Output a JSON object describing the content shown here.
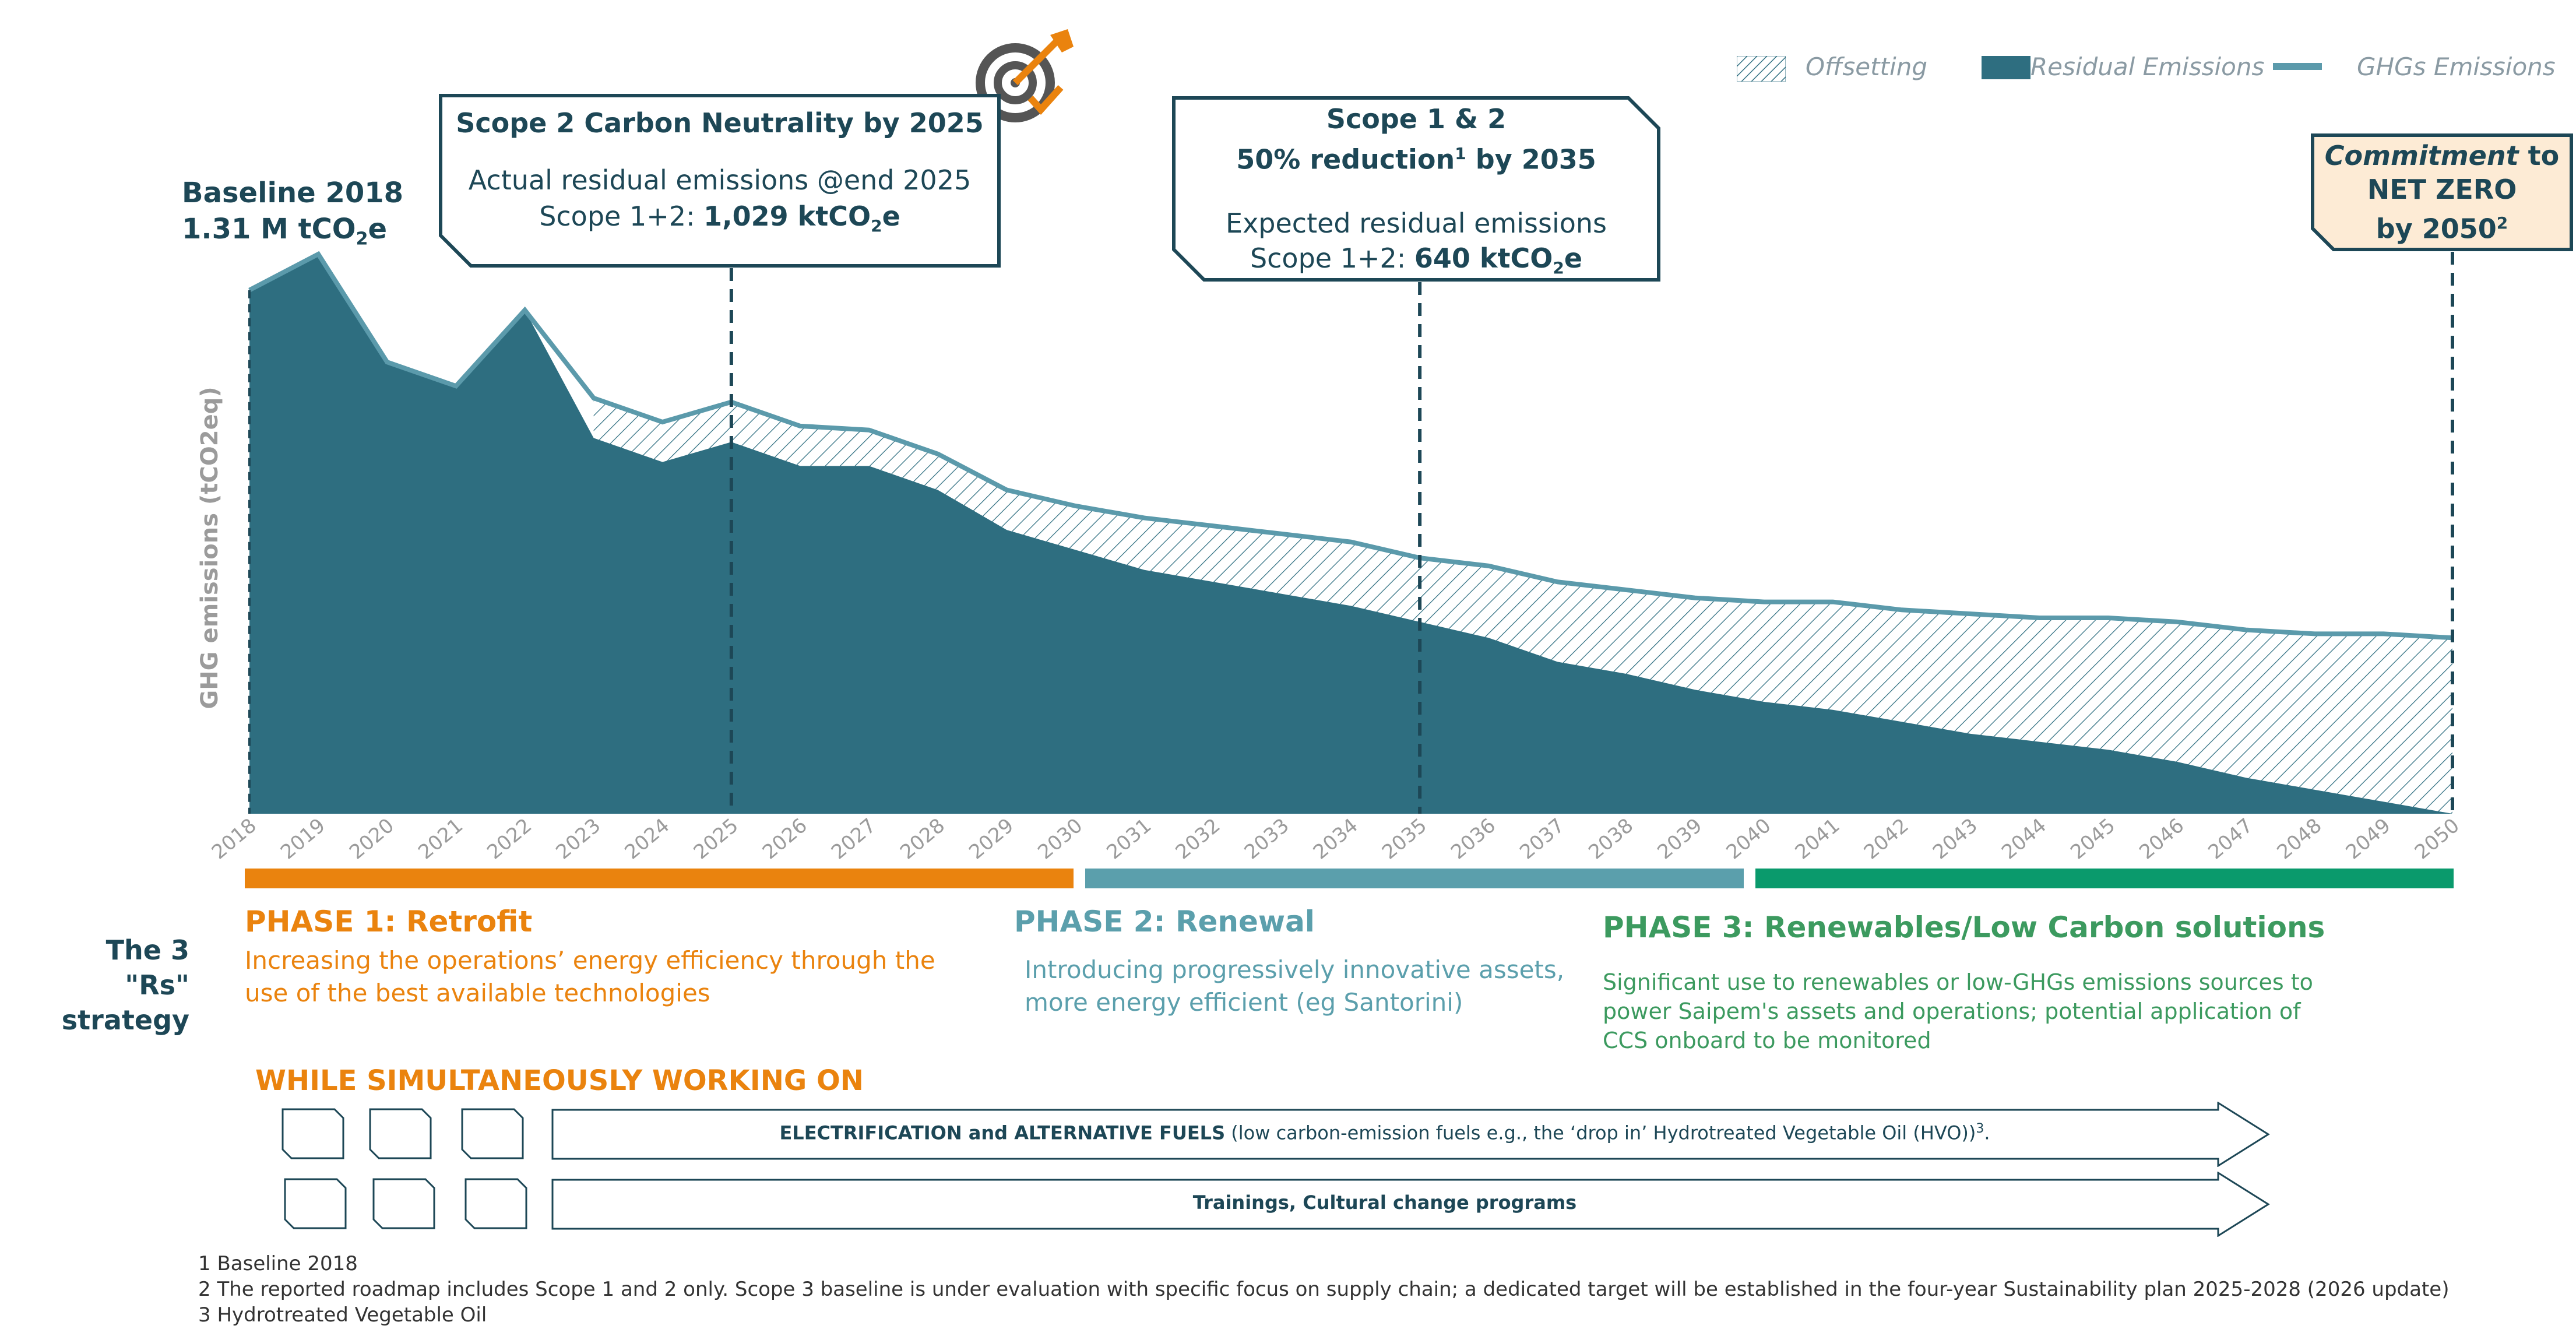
{
  "legend": {
    "offsetting": "Offsetting",
    "residual": "Residual Emissions",
    "ghgs": "GHGs Emissions"
  },
  "baseline": {
    "line1": "Baseline 2018",
    "line2_prefix": "1.31 M tCO",
    "line2_sub": "2",
    "line2_suffix": "e"
  },
  "callout_2025": {
    "title": "Scope 2 Carbon Neutrality by 2025",
    "line1": "Actual residual emissions @end 2025",
    "line2_prefix": "Scope 1+2: ",
    "line2_value": "1,029  ktCO",
    "line2_sub": "2",
    "line2_suffix": "e"
  },
  "callout_2035": {
    "title1": "Scope 1 & 2",
    "title2_prefix": "50% reduction",
    "title2_sup": "1",
    "title2_suffix": " by 2035",
    "line1": "Expected residual emissions",
    "line2_prefix": "Scope 1+2: ",
    "line2_value": "640 ktCO",
    "line2_sub": "2",
    "line2_suffix": "e"
  },
  "callout_2050": {
    "line1_bold": "Commitment",
    "line1_rest": " to",
    "line2": "NET ZERO",
    "line3_prefix": "by 2050",
    "line3_sup": "2"
  },
  "colors": {
    "residual": "#2e6e80",
    "ghg_line": "#5b9aab",
    "hatch": "#2e6e80",
    "phase1": "#ea830e",
    "phase2": "#5b9fac",
    "phase3": "#0a9a6c",
    "navy": "#1d4756"
  },
  "chart_data": {
    "type": "area",
    "ylabel": "GHG emissions (tCO2eq)",
    "x": [
      2018,
      2019,
      2020,
      2021,
      2022,
      2023,
      2024,
      2025,
      2026,
      2027,
      2028,
      2029,
      2030,
      2031,
      2032,
      2033,
      2034,
      2035,
      2036,
      2037,
      2038,
      2039,
      2040,
      2041,
      2042,
      2043,
      2044,
      2045,
      2046,
      2047,
      2048,
      2049,
      2050
    ],
    "ylim": [
      0,
      1.4
    ],
    "series": [
      {
        "name": "GHGs Emissions",
        "values": [
          1.31,
          1.4,
          1.13,
          1.07,
          1.26,
          1.04,
          0.98,
          1.03,
          0.97,
          0.96,
          0.9,
          0.81,
          0.77,
          0.74,
          0.72,
          0.7,
          0.68,
          0.64,
          0.62,
          0.58,
          0.56,
          0.54,
          0.53,
          0.53,
          0.51,
          0.5,
          0.49,
          0.49,
          0.48,
          0.46,
          0.45,
          0.45,
          0.44
        ]
      },
      {
        "name": "Residual Emissions",
        "values": [
          1.31,
          1.4,
          1.13,
          1.07,
          1.26,
          0.94,
          0.88,
          0.93,
          0.87,
          0.87,
          0.81,
          0.71,
          0.66,
          0.61,
          0.58,
          0.55,
          0.52,
          0.48,
          0.44,
          0.38,
          0.35,
          0.31,
          0.28,
          0.26,
          0.23,
          0.2,
          0.18,
          0.16,
          0.13,
          0.09,
          0.06,
          0.03,
          0.0
        ]
      }
    ],
    "offsetting_from": 2023,
    "markers": [
      2025,
      2035,
      2050
    ]
  },
  "phases": [
    {
      "title": "PHASE 1: Retrofit",
      "desc1": "Increasing the operations’ energy efficiency through the",
      "desc2": "use of the best available technologies"
    },
    {
      "title": "PHASE 2: Renewal",
      "desc1": "Introducing progressively innovative assets,",
      "desc2": "more energy efficient (eg Santorini)"
    },
    {
      "title": "PHASE 3: Renewables/Low Carbon solutions",
      "desc1": "Significant use to renewables or low-GHGs emissions sources to",
      "desc2": "power Saipem's assets and operations; potential application of",
      "desc3": "CCS onboard to be monitored"
    }
  ],
  "strategy": {
    "line1": "The 3",
    "line2": "\"Rs\" strategy"
  },
  "working_on": "WHILE SIMULTANEOUSLY WORKING ON",
  "bars": {
    "electrification_bold": "ELECTRIFICATION and ALTERNATIVE FUELS",
    "electrification_rest": " (low carbon-emission fuels e.g., the ‘drop in’ Hydrotreated Vegetable Oil (HVO))",
    "electrification_sup": "3",
    "electrification_end": ".",
    "trainings": "Trainings, Cultural change programs"
  },
  "footnotes": [
    "1 Baseline 2018",
    "2 The reported roadmap includes Scope 1 and 2 only. Scope 3 baseline is under evaluation with specific focus on supply chain; a dedicated target will be established in the four-year Sustainability plan 2025-2028 (2026 update)",
    "3 Hydrotreated Vegetable Oil"
  ]
}
